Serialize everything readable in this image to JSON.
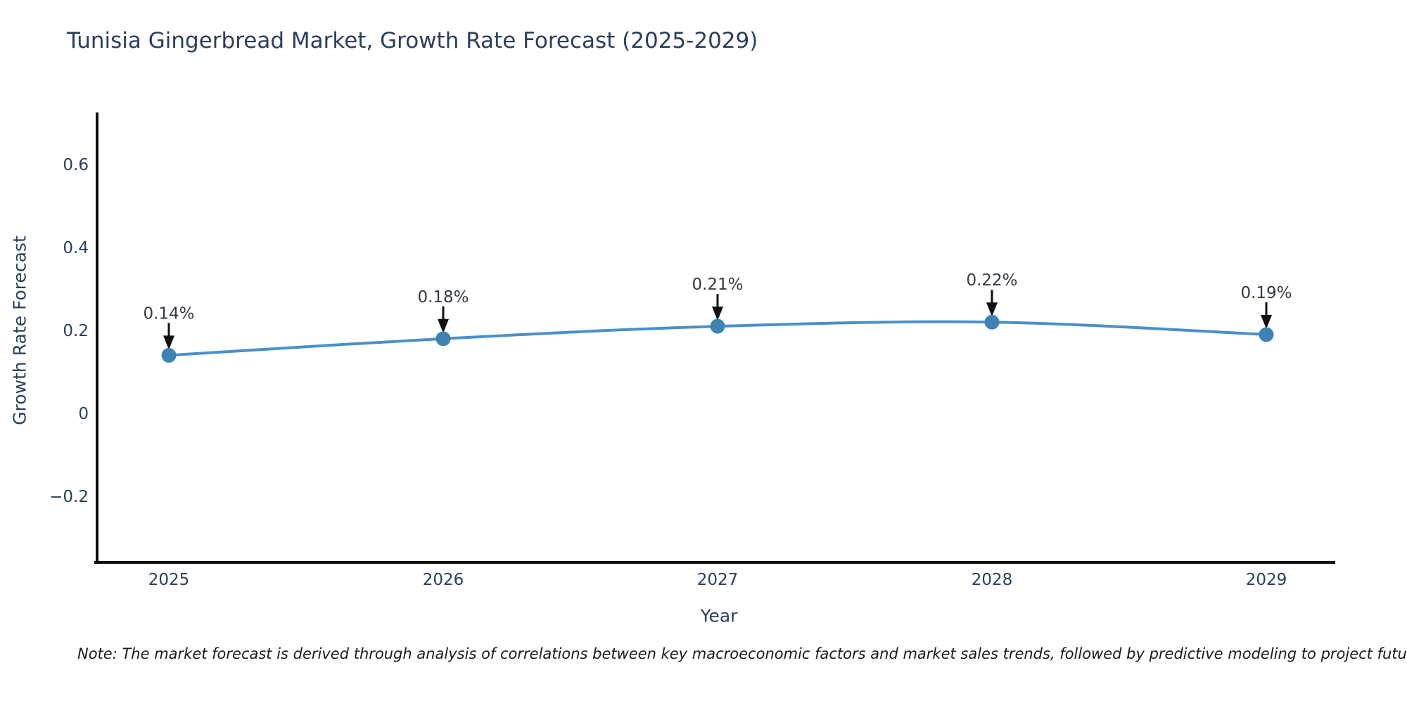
{
  "title": {
    "text": "Tunisia Gingerbread Market, Growth Rate Forecast (2025-2029)",
    "color": "#2a3f5f"
  },
  "note": {
    "text": "Note: The market forecast is derived through analysis of correlations between key macroeconomic factors and market sales trends, followed by predictive modeling to project future sales."
  },
  "chart_data": {
    "type": "line",
    "title": "Tunisia Gingerbread Market, Growth Rate Forecast (2025-2029)",
    "xlabel": "Year",
    "ylabel": "Growth Rate Forecast",
    "categories": [
      "2025",
      "2026",
      "2027",
      "2028",
      "2029"
    ],
    "series": [
      {
        "name": "Growth Rate Forecast",
        "values": [
          0.14,
          0.18,
          0.21,
          0.22,
          0.19
        ],
        "point_labels": [
          "0.14%",
          "0.18%",
          "0.21%",
          "0.22%",
          "0.19%"
        ]
      }
    ],
    "yticks": [
      {
        "value": 0.6,
        "label": "0.6"
      },
      {
        "value": 0.4,
        "label": "0.4"
      },
      {
        "value": 0.2,
        "label": "0.2"
      },
      {
        "value": 0.0,
        "label": "0"
      },
      {
        "value": -0.2,
        "label": "−0.2"
      }
    ],
    "ylim": [
      -0.36,
      0.73
    ],
    "grid": false,
    "legend": false,
    "annotations_have_arrows": true,
    "colors": {
      "line": "#4a90c9",
      "marker": "#3f83b5",
      "axis_spine": "#0d0d0d",
      "tick_label": "#2a3f5f",
      "annotation_text": "#333a45",
      "arrow": "#111111"
    }
  }
}
